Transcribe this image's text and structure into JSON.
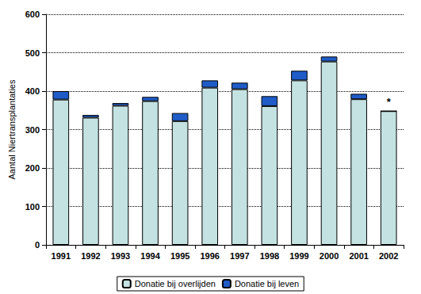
{
  "chart_data": {
    "type": "bar",
    "stacked": true,
    "y_label": "Aantal Niertransplantaties",
    "categories": [
      "1991",
      "1992",
      "1993",
      "1994",
      "1995",
      "1996",
      "1997",
      "1998",
      "1999",
      "2000",
      "2001",
      "2002"
    ],
    "series": [
      {
        "name": "Donatie bij overlijden",
        "color": "#c4e2e2",
        "values": [
          378,
          331,
          362,
          374,
          322,
          409,
          405,
          361,
          428,
          477,
          379,
          348
        ]
      },
      {
        "name": "Donatie bij leven",
        "color": "#1f5cc8",
        "values": [
          22,
          7,
          7,
          11,
          21,
          19,
          17,
          26,
          25,
          13,
          14,
          0
        ]
      }
    ],
    "annotations": [
      {
        "category": "2002",
        "text": "*"
      }
    ],
    "ylim": [
      0,
      600
    ],
    "yticks": [
      0,
      100,
      200,
      300,
      400,
      500,
      600
    ],
    "grid": true,
    "legend": "bottom"
  }
}
